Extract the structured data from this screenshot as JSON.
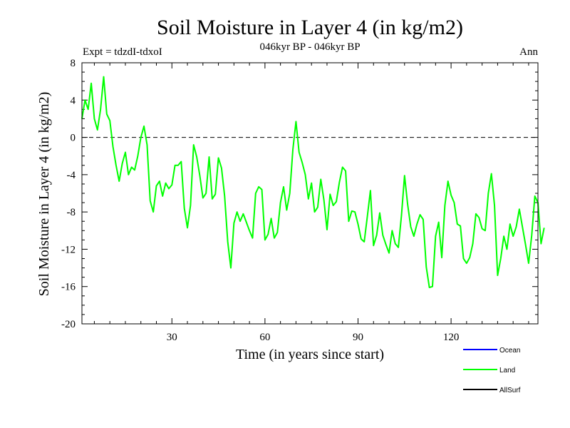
{
  "chart_data": {
    "type": "line",
    "title": "Soil Moisture in Layer 4 (in kg/m2)",
    "subtitle": "046kyr BP - 046kyr BP",
    "experiment": "Expt = tdzdI-tdxoI",
    "period": "Ann",
    "xlabel": "Time (in years since start)",
    "ylabel": "Soil Moisture in Layer 4 (in kg/m2)",
    "xlim": [
      1,
      148
    ],
    "ylim": [
      -20,
      8
    ],
    "xticks": [
      30,
      60,
      90,
      120
    ],
    "xtick_labels": [
      "30",
      "60",
      "90",
      "120"
    ],
    "yticks": [
      8,
      4,
      0,
      -4,
      -8,
      -12,
      -16,
      -20
    ],
    "ytick_labels": [
      "8",
      "4",
      "0",
      "-4",
      "-8",
      "-12",
      "-16",
      "-20"
    ],
    "reference_line": 0,
    "colors": {
      "ocean": "#0000ff",
      "land": "#00ff00",
      "allsurf": "#000000"
    },
    "legend": [
      {
        "name": "Ocean",
        "color": "#0000ff"
      },
      {
        "name": "Land",
        "color": "#00ff00"
      },
      {
        "name": "AllSurf",
        "color": "#000000"
      }
    ],
    "series": [
      {
        "name": "Land",
        "color": "#00ff00",
        "x_start": 1,
        "values": [
          2.0,
          4.0,
          3.0,
          5.8,
          2.0,
          0.8,
          3.0,
          6.5,
          2.5,
          1.8,
          -1.0,
          -3.0,
          -4.7,
          -2.8,
          -1.6,
          -4.0,
          -3.2,
          -3.5,
          -2.0,
          0.0,
          1.2,
          -0.8,
          -6.8,
          -8.0,
          -5.2,
          -4.7,
          -6.3,
          -4.9,
          -5.5,
          -5.1,
          -3.0,
          -3.0,
          -2.6,
          -7.6,
          -9.7,
          -7.3,
          -0.8,
          -2.1,
          -4.1,
          -6.5,
          -6.0,
          -2.1,
          -6.6,
          -6.1,
          -2.2,
          -3.3,
          -6.3,
          -11.2,
          -14.0,
          -9.2,
          -8.0,
          -9.0,
          -8.2,
          -9.1,
          -10.0,
          -10.8,
          -6.0,
          -5.3,
          -5.6,
          -11.0,
          -10.4,
          -8.7,
          -10.8,
          -10.2,
          -7.0,
          -5.3,
          -7.8,
          -6.0,
          -1.3,
          1.7,
          -1.6,
          -2.7,
          -4.0,
          -6.6,
          -4.9,
          -8.0,
          -7.5,
          -4.5,
          -6.7,
          -9.9,
          -6.1,
          -7.3,
          -6.9,
          -4.8,
          -3.2,
          -3.6,
          -9.0,
          -7.9,
          -8.0,
          -9.3,
          -10.9,
          -11.2,
          -8.5,
          -5.7,
          -11.6,
          -10.5,
          -8.1,
          -10.5,
          -11.5,
          -12.4,
          -10.0,
          -11.4,
          -11.8,
          -8.4,
          -4.1,
          -7.2,
          -9.6,
          -10.6,
          -9.3,
          -8.3,
          -8.8,
          -13.9,
          -16.1,
          -16.0,
          -10.6,
          -9.1,
          -12.9,
          -7.3,
          -4.7,
          -6.2,
          -7.0,
          -9.3,
          -9.5,
          -13.0,
          -13.5,
          -12.9,
          -11.4,
          -8.2,
          -8.6,
          -9.8,
          -10.0,
          -6.0,
          -3.9,
          -7.3,
          -14.8,
          -13.0,
          -10.6,
          -12.0,
          -9.3,
          -10.6,
          -9.6,
          -7.7,
          -9.6,
          -11.5,
          -13.5,
          -10.5,
          -6.3,
          -7.0,
          -11.4,
          -9.7
        ]
      }
    ]
  }
}
